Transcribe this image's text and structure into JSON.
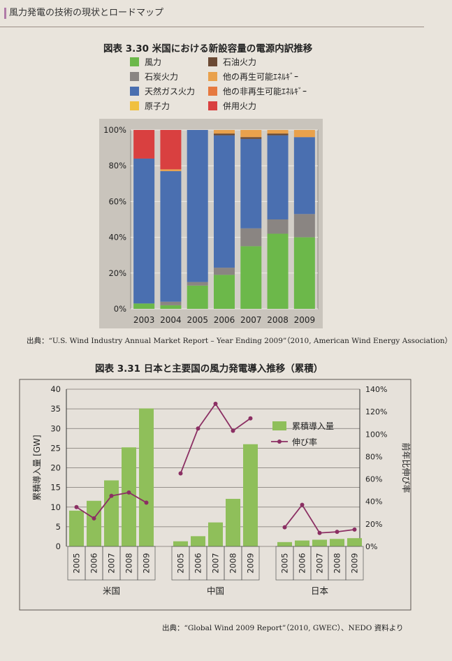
{
  "page_header": "風力発電の技術の現状とロードマップ",
  "figure1": {
    "title": "図表 3.30 米国における新設容量の電源内訳推移",
    "source": "出典：“U.S. Wind Industry Annual Market Report – Year Ending 2009”（2010, American Wind Energy Association）"
  },
  "figure2": {
    "title": "図表 3.31 日本と主要国の風力発電導入推移（累積）",
    "source": "出典：“Global Wind 2009 Report”（2010, GWEC）、NEDO 資料より"
  },
  "chart_data": [
    {
      "type": "bar",
      "stacked": true,
      "title": "図表 3.30 米国における新設容量の電源内訳推移",
      "categories": [
        "2003",
        "2004",
        "2005",
        "2006",
        "2007",
        "2008",
        "2009"
      ],
      "ylim": [
        0,
        100
      ],
      "yticks": [
        "0%",
        "20%",
        "40%",
        "60%",
        "80%",
        "100%"
      ],
      "grid": true,
      "legend": "top",
      "series": [
        {
          "name": "風力",
          "color": "#6cb84a",
          "values": [
            3,
            2,
            13,
            19,
            35,
            42,
            40
          ]
        },
        {
          "name": "石炭火力",
          "color": "#8a8582",
          "values": [
            0,
            2,
            2,
            4,
            10,
            8,
            13
          ]
        },
        {
          "name": "天然ガス火力",
          "color": "#4a6fb0",
          "values": [
            81,
            73,
            85,
            74,
            50,
            47,
            43
          ]
        },
        {
          "name": "原子力",
          "color": "#f0c040",
          "values": [
            0,
            0,
            0,
            0,
            0,
            0,
            0
          ]
        },
        {
          "name": "石油火力",
          "color": "#6b4a34",
          "values": [
            0,
            0,
            0,
            1,
            1,
            1,
            0
          ]
        },
        {
          "name": "他の再生可能ｴﾈﾙｷﾞｰ",
          "color": "#e9a14c",
          "values": [
            0,
            1,
            0,
            2,
            4,
            2,
            4
          ]
        },
        {
          "name": "他の非再生可能ｴﾈﾙｷﾞｰ",
          "color": "#e6793f",
          "values": [
            0,
            0,
            0,
            0,
            0,
            0,
            0
          ]
        },
        {
          "name": "併用火力",
          "color": "#d94040",
          "values": [
            16,
            22,
            0,
            0,
            0,
            0,
            0
          ]
        }
      ]
    },
    {
      "type": "bar+line",
      "title": "図表 3.31 日本と主要国の風力発電導入推移（累積）",
      "groups": [
        {
          "label": "米国",
          "years": [
            "2005",
            "2006",
            "2007",
            "2008",
            "2009"
          ],
          "bar": [
            9.1,
            11.6,
            16.8,
            25.2,
            35.1
          ],
          "line": [
            35,
            25,
            45,
            48,
            39
          ]
        },
        {
          "label": "中国",
          "years": [
            "2005",
            "2006",
            "2007",
            "2008",
            "2009"
          ],
          "bar": [
            1.3,
            2.6,
            6.1,
            12.1,
            26.0
          ],
          "line": [
            65,
            105,
            127,
            103,
            114
          ]
        },
        {
          "label": "日本",
          "years": [
            "2005",
            "2006",
            "2007",
            "2008",
            "2009"
          ],
          "bar": [
            1.1,
            1.5,
            1.7,
            1.9,
            2.1
          ],
          "line": [
            17,
            37,
            12,
            13,
            15
          ]
        }
      ],
      "ylabel": "累積導入量 [GW]",
      "ylim": [
        0,
        40
      ],
      "yticks": [
        "0",
        "5",
        "10",
        "15",
        "20",
        "25",
        "30",
        "35",
        "40"
      ],
      "y2label": "前年比伸び率",
      "y2lim": [
        0,
        140
      ],
      "y2ticks": [
        "0%",
        "20%",
        "40%",
        "60%",
        "80%",
        "100%",
        "120%",
        "140%"
      ],
      "bar_series_name": "累積導入量",
      "line_series_name": "伸び率",
      "bar_color": "#8fbf5a",
      "line_color": "#8b2f63",
      "grid": true,
      "legend": "top-right"
    }
  ]
}
